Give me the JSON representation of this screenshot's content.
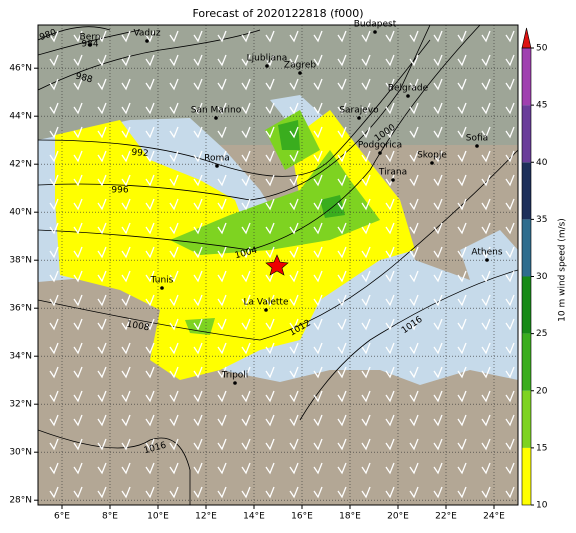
{
  "map": {
    "title": "Forecast of 2020122818 (f000)",
    "xlim": [
      5,
      25
    ],
    "ylim": [
      27.8,
      47.8
    ],
    "xticks": [
      {
        "value": 6,
        "label": "6°E"
      },
      {
        "value": 8,
        "label": "8°E"
      },
      {
        "value": 10,
        "label": "10°E"
      },
      {
        "value": 12,
        "label": "12°E"
      },
      {
        "value": 14,
        "label": "14°E"
      },
      {
        "value": 16,
        "label": "16°E"
      },
      {
        "value": 18,
        "label": "18°E"
      },
      {
        "value": 20,
        "label": "20°E"
      },
      {
        "value": 22,
        "label": "22°E"
      },
      {
        "value": 24,
        "label": "24°E"
      }
    ],
    "yticks": [
      {
        "value": 28,
        "label": "28°N"
      },
      {
        "value": 30,
        "label": "30°N"
      },
      {
        "value": 32,
        "label": "32°N"
      },
      {
        "value": 34,
        "label": "34°N"
      },
      {
        "value": 36,
        "label": "36°N"
      },
      {
        "value": 38,
        "label": "38°N"
      },
      {
        "value": 40,
        "label": "40°N"
      },
      {
        "value": 42,
        "label": "42°N"
      },
      {
        "value": 44,
        "label": "44°N"
      },
      {
        "value": 46,
        "label": "46°N"
      }
    ],
    "grid": true,
    "cities": [
      "Bern",
      "Vaduz",
      "Budapest",
      "Ljubljana",
      "Zagreb",
      "Belgrade",
      "San Marino",
      "Sarajevo",
      "Roma",
      "Podgorica",
      "Skopje",
      "Sofia",
      "Tirana",
      "Tunis",
      "La Valette",
      "Athens",
      "Tripoli"
    ],
    "isobar_labels": [
      "980",
      "984",
      "988",
      "992",
      "996",
      "1000",
      "1004",
      "1008",
      "1012",
      "1016",
      "1016"
    ],
    "colorbar": {
      "label": "10 m wind speed (m/s)",
      "lim": [
        10,
        50
      ],
      "ticks": [
        10,
        15,
        20,
        25,
        30,
        35,
        40,
        45,
        50
      ],
      "colors": [
        "#ffff00",
        "#7ed321",
        "#3aad1e",
        "#178a17",
        "#2e6d8e",
        "#1d2f5a",
        "#6a3d9a",
        "#a040b0"
      ],
      "extend_color": "#dd1111"
    }
  }
}
